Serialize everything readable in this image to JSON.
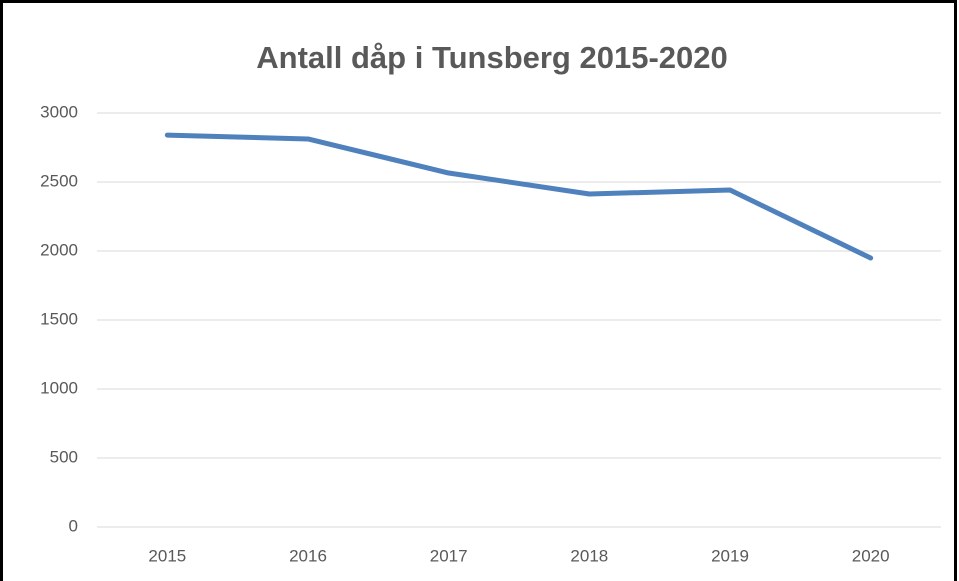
{
  "chart_data": {
    "type": "line",
    "title": "Antall dåp i Tunsberg 2015-2020",
    "categories": [
      "2015",
      "2016",
      "2017",
      "2018",
      "2019",
      "2020"
    ],
    "series": [
      {
        "name": "Antall dåp",
        "color": "#4f81bd",
        "values": [
          2840,
          2812,
          2565,
          2413,
          2442,
          1949
        ]
      }
    ],
    "ylim": [
      0,
      3000
    ],
    "yticks": [
      0,
      500,
      1000,
      1500,
      2000,
      2500,
      3000
    ],
    "grid": true
  }
}
